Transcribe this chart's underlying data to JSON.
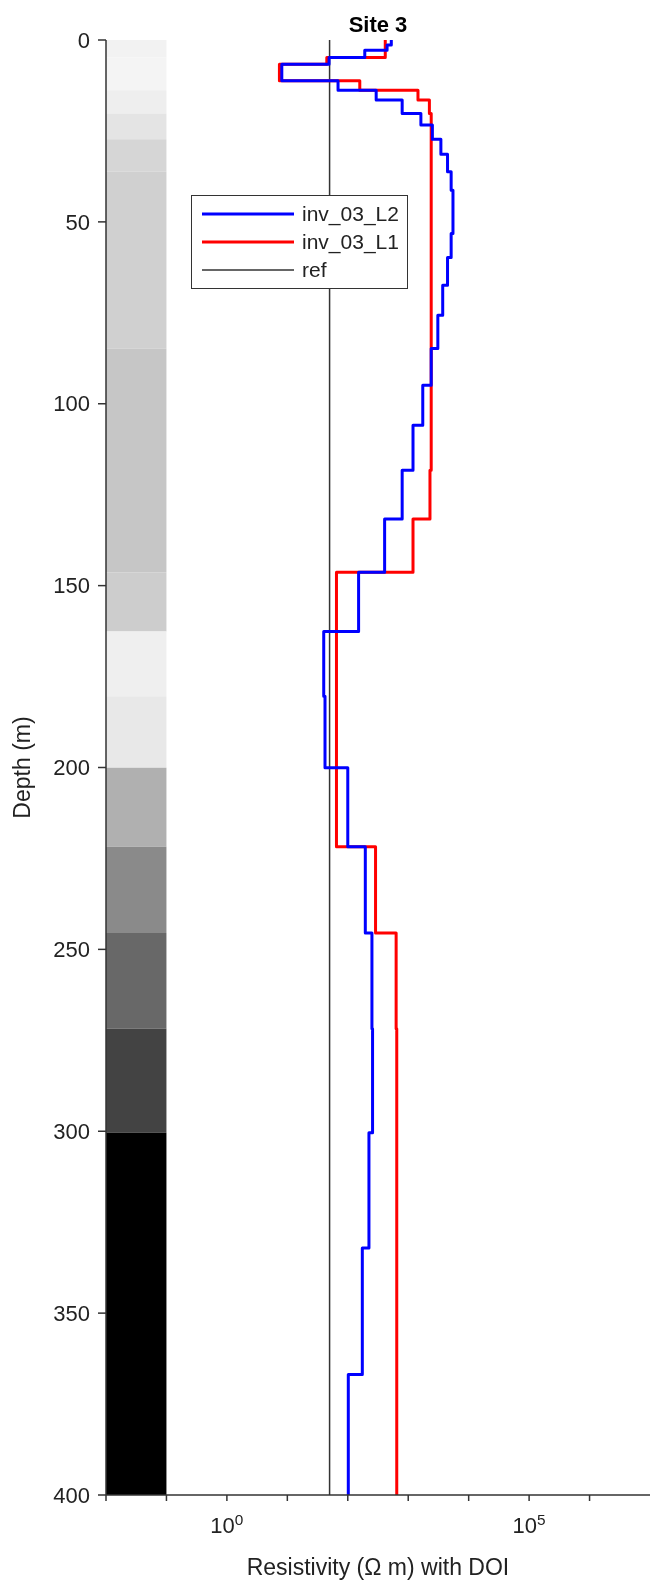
{
  "chart_data": {
    "type": "line",
    "title": "Site 3",
    "xlabel": "Resistivity (Ω m) with DOI",
    "ylabel": "Depth (m)",
    "log": "x",
    "xlim": [
      0.01,
      10000000
    ],
    "ylim": [
      400,
      0
    ],
    "xticks": [
      {
        "value": 0.01,
        "label": null
      },
      {
        "value": 0.1,
        "label": null
      },
      {
        "value": 1,
        "label": "10$^{0}$"
      },
      {
        "value": 10,
        "label": null
      },
      {
        "value": 100,
        "label": null
      },
      {
        "value": 1000,
        "label": null
      },
      {
        "value": 10000,
        "label": null
      },
      {
        "value": 100000,
        "label": "10$^{5}$"
      },
      {
        "value": 1000000,
        "label": null
      }
    ],
    "yticks": [
      0,
      50,
      100,
      150,
      200,
      250,
      300,
      350,
      400
    ],
    "grid": false,
    "legend": "top left",
    "series": [
      {
        "name": "inv_03_L2",
        "color": "#0000ff",
        "x": [
          525,
          525,
          447,
          447,
          191,
          191,
          49,
          49,
          8.1,
          8.1,
          69,
          69,
          295,
          295,
          794,
          794,
          1620,
          1620,
          2510,
          2510,
          3470,
          3470,
          4470,
          4470,
          5130,
          5130,
          5500,
          5500,
          5130,
          5130,
          4470,
          4470,
          3720,
          3720,
          3090,
          3090,
          2400,
          2400,
          1740,
          1740,
          1200,
          1200,
          794,
          794,
          407,
          407,
          151,
          151,
          40,
          40,
          42,
          42,
          100,
          100,
          195,
          195,
          251,
          251,
          257,
          257,
          224,
          224,
          174,
          174,
          102,
          102
        ],
        "values": [
          0,
          1.4,
          1.4,
          2.8,
          2.8,
          4.8,
          4.8,
          6.7,
          6.7,
          11.2,
          11.2,
          13.8,
          13.8,
          16.5,
          16.5,
          20.2,
          20.2,
          23.4,
          23.4,
          27.3,
          27.3,
          31.4,
          31.4,
          36.2,
          36.2,
          41.3,
          41.3,
          53.2,
          53.2,
          59.8,
          59.8,
          67.4,
          67.4,
          75.7,
          75.7,
          84.8,
          84.8,
          94.9,
          94.9,
          105.9,
          105.9,
          118.3,
          118.3,
          131.7,
          131.7,
          146.3,
          146.3,
          162.6,
          162.6,
          180.4,
          180.4,
          200.1,
          200.1,
          221.8,
          221.8,
          245.5,
          245.5,
          271.8,
          271.8,
          300.4,
          300.4,
          332.1,
          332.1,
          366.9,
          366.9,
          400
        ]
      },
      {
        "name": "inv_03_L1",
        "color": "#ff0000",
        "x": [
          417,
          417,
          45,
          45,
          7.4,
          7.4,
          158,
          158,
          1450,
          1450,
          2240,
          2240,
          2400,
          2400,
          2290,
          2290,
          1200,
          1200,
          65,
          65,
          288,
          288,
          631,
          631,
          646,
          646
        ],
        "values": [
          0,
          4.8,
          4.8,
          6.7,
          6.7,
          11.2,
          11.2,
          13.8,
          13.8,
          16.5,
          16.5,
          20.2,
          20.2,
          118.3,
          118.3,
          131.7,
          131.7,
          146.3,
          146.3,
          221.8,
          221.8,
          245.5,
          245.5,
          271.8,
          271.8,
          400
        ]
      }
    ],
    "ref_lines": [
      {
        "axis": "x",
        "value": 50,
        "label": "ref",
        "color": "#333333"
      }
    ],
    "bands": [
      {
        "axis": "y",
        "from": 0,
        "to": 4.8,
        "color": "#f2f2f2"
      },
      {
        "axis": "y",
        "from": 4.8,
        "to": 13.8,
        "color": "#f4f4f4"
      },
      {
        "axis": "y",
        "from": 13.8,
        "to": 20.2,
        "color": "#eeeeee"
      },
      {
        "axis": "y",
        "from": 20.2,
        "to": 27.3,
        "color": "#e4e4e4"
      },
      {
        "axis": "y",
        "from": 27.3,
        "to": 36.2,
        "color": "#d6d6d6"
      },
      {
        "axis": "y",
        "from": 36.2,
        "to": 84.8,
        "color": "#d0d0d0"
      },
      {
        "axis": "y",
        "from": 84.8,
        "to": 146.3,
        "color": "#c6c6c6"
      },
      {
        "axis": "y",
        "from": 146.3,
        "to": 162.6,
        "color": "#cdcdcd"
      },
      {
        "axis": "y",
        "from": 162.6,
        "to": 180.4,
        "color": "#efefef"
      },
      {
        "axis": "y",
        "from": 180.4,
        "to": 200.1,
        "color": "#e8e8e8"
      },
      {
        "axis": "y",
        "from": 200.1,
        "to": 221.8,
        "color": "#b0b0b0"
      },
      {
        "axis": "y",
        "from": 221.8,
        "to": 245.5,
        "color": "#8a8a8a"
      },
      {
        "axis": "y",
        "from": 245.5,
        "to": 271.8,
        "color": "#686868"
      },
      {
        "axis": "y",
        "from": 271.8,
        "to": 300.4,
        "color": "#434343"
      },
      {
        "axis": "y",
        "from": 300.4,
        "to": 400,
        "color": "#000000"
      }
    ]
  }
}
